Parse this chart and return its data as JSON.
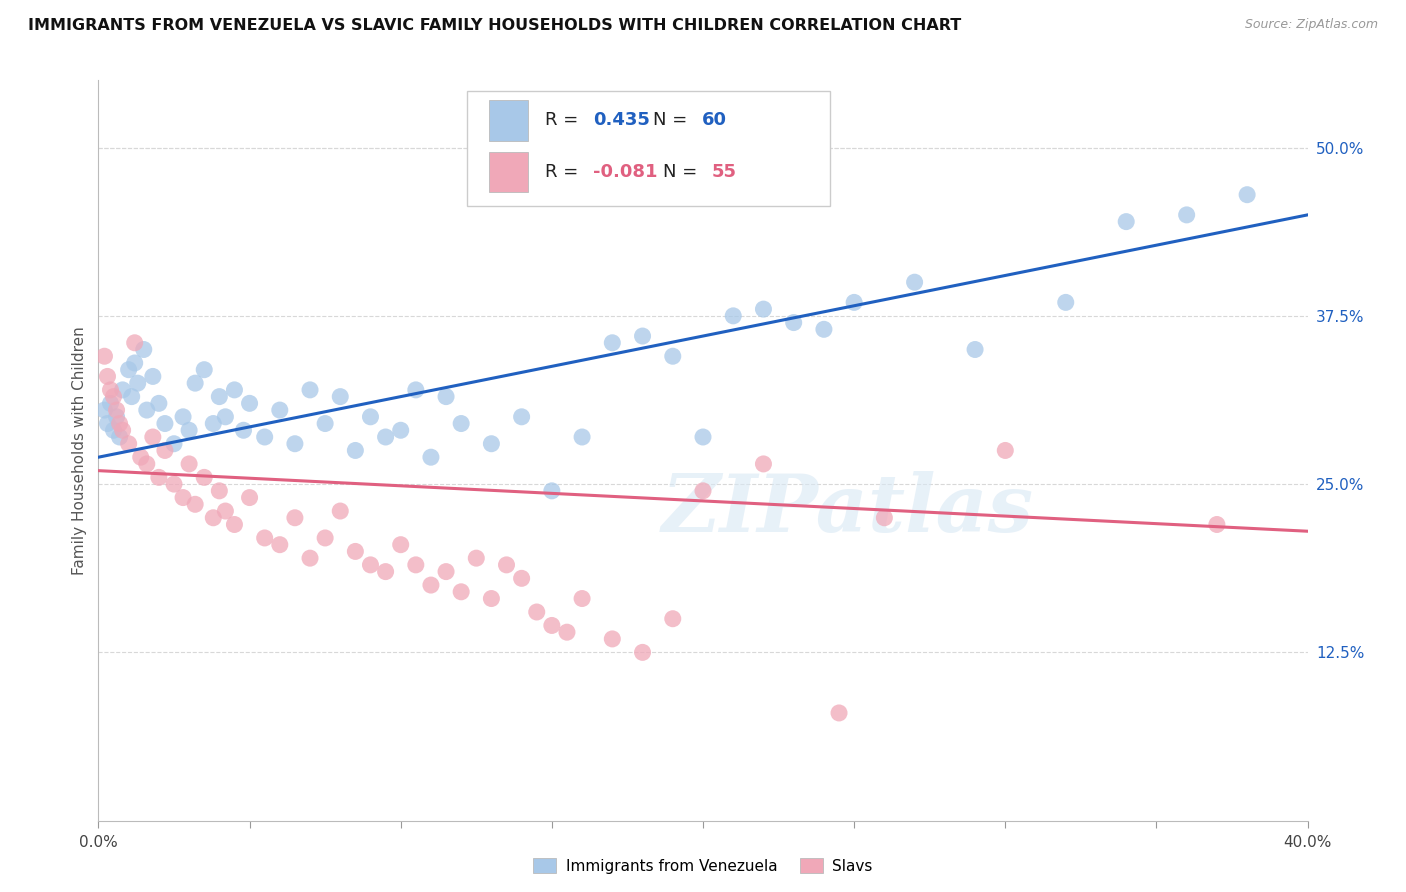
{
  "title": "IMMIGRANTS FROM VENEZUELA VS SLAVIC FAMILY HOUSEHOLDS WITH CHILDREN CORRELATION CHART",
  "source": "Source: ZipAtlas.com",
  "ylabel": "Family Households with Children",
  "legend_label_blue": "Immigrants from Venezuela",
  "legend_label_pink": "Slavs",
  "blue_color": "#a8c8e8",
  "pink_color": "#f0a8b8",
  "blue_line_color": "#2060c0",
  "pink_line_color": "#e06080",
  "blue_scatter": [
    [
      0.2,
      30.5
    ],
    [
      0.3,
      29.5
    ],
    [
      0.4,
      31.0
    ],
    [
      0.5,
      29.0
    ],
    [
      0.6,
      30.0
    ],
    [
      0.7,
      28.5
    ],
    [
      0.8,
      32.0
    ],
    [
      1.0,
      33.5
    ],
    [
      1.1,
      31.5
    ],
    [
      1.2,
      34.0
    ],
    [
      1.3,
      32.5
    ],
    [
      1.5,
      35.0
    ],
    [
      1.6,
      30.5
    ],
    [
      1.8,
      33.0
    ],
    [
      2.0,
      31.0
    ],
    [
      2.2,
      29.5
    ],
    [
      2.5,
      28.0
    ],
    [
      2.8,
      30.0
    ],
    [
      3.0,
      29.0
    ],
    [
      3.2,
      32.5
    ],
    [
      3.5,
      33.5
    ],
    [
      3.8,
      29.5
    ],
    [
      4.0,
      31.5
    ],
    [
      4.2,
      30.0
    ],
    [
      4.5,
      32.0
    ],
    [
      4.8,
      29.0
    ],
    [
      5.0,
      31.0
    ],
    [
      5.5,
      28.5
    ],
    [
      6.0,
      30.5
    ],
    [
      6.5,
      28.0
    ],
    [
      7.0,
      32.0
    ],
    [
      7.5,
      29.5
    ],
    [
      8.0,
      31.5
    ],
    [
      8.5,
      27.5
    ],
    [
      9.0,
      30.0
    ],
    [
      9.5,
      28.5
    ],
    [
      10.0,
      29.0
    ],
    [
      10.5,
      32.0
    ],
    [
      11.0,
      27.0
    ],
    [
      11.5,
      31.5
    ],
    [
      12.0,
      29.5
    ],
    [
      13.0,
      28.0
    ],
    [
      14.0,
      30.0
    ],
    [
      15.0,
      24.5
    ],
    [
      16.0,
      28.5
    ],
    [
      17.0,
      35.5
    ],
    [
      18.0,
      36.0
    ],
    [
      19.0,
      34.5
    ],
    [
      20.0,
      28.5
    ],
    [
      21.0,
      37.5
    ],
    [
      22.0,
      38.0
    ],
    [
      23.0,
      37.0
    ],
    [
      24.0,
      36.5
    ],
    [
      25.0,
      38.5
    ],
    [
      27.0,
      40.0
    ],
    [
      29.0,
      35.0
    ],
    [
      32.0,
      38.5
    ],
    [
      34.0,
      44.5
    ],
    [
      36.0,
      45.0
    ],
    [
      38.0,
      46.5
    ]
  ],
  "pink_scatter": [
    [
      0.2,
      34.5
    ],
    [
      0.3,
      33.0
    ],
    [
      0.4,
      32.0
    ],
    [
      0.5,
      31.5
    ],
    [
      0.6,
      30.5
    ],
    [
      0.7,
      29.5
    ],
    [
      0.8,
      29.0
    ],
    [
      1.0,
      28.0
    ],
    [
      1.2,
      35.5
    ],
    [
      1.4,
      27.0
    ],
    [
      1.6,
      26.5
    ],
    [
      1.8,
      28.5
    ],
    [
      2.0,
      25.5
    ],
    [
      2.2,
      27.5
    ],
    [
      2.5,
      25.0
    ],
    [
      2.8,
      24.0
    ],
    [
      3.0,
      26.5
    ],
    [
      3.2,
      23.5
    ],
    [
      3.5,
      25.5
    ],
    [
      3.8,
      22.5
    ],
    [
      4.0,
      24.5
    ],
    [
      4.2,
      23.0
    ],
    [
      4.5,
      22.0
    ],
    [
      5.0,
      24.0
    ],
    [
      5.5,
      21.0
    ],
    [
      6.0,
      20.5
    ],
    [
      6.5,
      22.5
    ],
    [
      7.0,
      19.5
    ],
    [
      7.5,
      21.0
    ],
    [
      8.0,
      23.0
    ],
    [
      8.5,
      20.0
    ],
    [
      9.0,
      19.0
    ],
    [
      9.5,
      18.5
    ],
    [
      10.0,
      20.5
    ],
    [
      10.5,
      19.0
    ],
    [
      11.0,
      17.5
    ],
    [
      11.5,
      18.5
    ],
    [
      12.0,
      17.0
    ],
    [
      12.5,
      19.5
    ],
    [
      13.0,
      16.5
    ],
    [
      13.5,
      19.0
    ],
    [
      14.0,
      18.0
    ],
    [
      14.5,
      15.5
    ],
    [
      15.0,
      14.5
    ],
    [
      15.5,
      14.0
    ],
    [
      16.0,
      16.5
    ],
    [
      17.0,
      13.5
    ],
    [
      18.0,
      12.5
    ],
    [
      19.0,
      15.0
    ],
    [
      20.0,
      24.5
    ],
    [
      22.0,
      26.5
    ],
    [
      24.5,
      8.0
    ],
    [
      26.0,
      22.5
    ],
    [
      30.0,
      27.5
    ],
    [
      37.0,
      22.0
    ]
  ],
  "xlim": [
    0,
    40
  ],
  "ylim": [
    0,
    55
  ],
  "x_ticks": [
    0,
    5,
    10,
    15,
    20,
    25,
    30,
    35,
    40
  ],
  "y_ticks": [
    12.5,
    25.0,
    37.5,
    50.0
  ],
  "blue_line_x": [
    0,
    40
  ],
  "blue_line_y": [
    27.0,
    45.0
  ],
  "pink_line_x": [
    0,
    40
  ],
  "pink_line_y": [
    26.0,
    21.5
  ],
  "watermark": "ZIPatlas",
  "background_color": "#ffffff",
  "grid_color": "#d8d8d8"
}
